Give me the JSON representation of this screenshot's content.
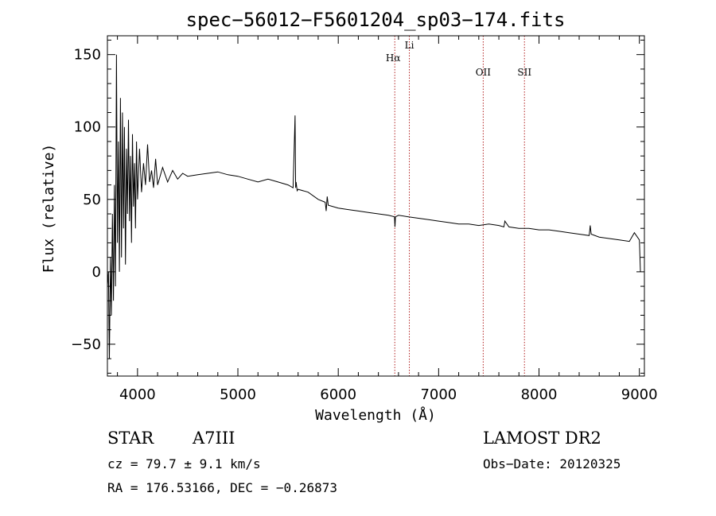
{
  "chart_data": {
    "type": "line",
    "title": "spec−56012−F5601204_sp03−174.fits",
    "xlabel": "Wavelength (Å)",
    "ylabel": "Flux (relative)",
    "xlim": [
      3700,
      9050
    ],
    "ylim": [
      -72,
      163
    ],
    "xticks": [
      4000,
      5000,
      6000,
      7000,
      8000,
      9000
    ],
    "xtick_labels": [
      "4000",
      "5000",
      "6000",
      "7000",
      "8000",
      "9000"
    ],
    "yticks": [
      -50,
      0,
      50,
      100,
      150
    ],
    "ytick_labels": [
      "−50",
      "0",
      "50",
      "100",
      "150"
    ],
    "grid": false,
    "series": [
      {
        "x": [
          3700,
          3710,
          3720,
          3730,
          3740,
          3750,
          3760,
          3770,
          3780,
          3790,
          3800,
          3810,
          3820,
          3830,
          3840,
          3850,
          3860,
          3870,
          3880,
          3890,
          3900,
          3910,
          3920,
          3930,
          3940,
          3950,
          3960,
          3970,
          3980,
          3990,
          4000,
          4020,
          4040,
          4060,
          4080,
          4100,
          4120,
          4140,
          4160,
          4180,
          4200,
          4250,
          4300,
          4350,
          4400,
          4450,
          4500,
          4600,
          4700,
          4800,
          4900,
          5000,
          5100,
          5200,
          5300,
          5400,
          5500,
          5550,
          5570,
          5575,
          5580,
          5590,
          5600,
          5700,
          5800,
          5870,
          5880,
          5890,
          5900,
          6000,
          6100,
          6200,
          6300,
          6400,
          6500,
          6560,
          6565,
          6570,
          6600,
          6700,
          6800,
          6900,
          7000,
          7100,
          7200,
          7300,
          7400,
          7500,
          7600,
          7650,
          7660,
          7700,
          7800,
          7900,
          8000,
          8100,
          8200,
          8300,
          8400,
          8500,
          8510,
          8520,
          8600,
          8700,
          8800,
          8900,
          8950,
          9000,
          9010
        ],
        "y": [
          -10,
          0,
          -60,
          10,
          -30,
          40,
          -20,
          60,
          -10,
          150,
          20,
          90,
          0,
          120,
          10,
          110,
          30,
          100,
          5,
          85,
          40,
          105,
          35,
          80,
          20,
          95,
          45,
          75,
          30,
          90,
          50,
          85,
          55,
          75,
          60,
          88,
          62,
          70,
          58,
          78,
          60,
          72,
          62,
          70,
          64,
          68,
          66,
          67,
          68,
          69,
          67,
          66,
          64,
          62,
          64,
          62,
          60,
          58,
          108,
          58,
          62,
          56,
          57,
          55,
          50,
          48,
          42,
          52,
          46,
          44,
          43,
          42,
          41,
          40,
          39,
          38,
          31,
          38,
          39,
          38,
          37,
          36,
          35,
          34,
          33,
          33,
          32,
          33,
          32,
          31,
          35,
          31,
          30,
          30,
          29,
          29,
          28,
          27,
          26,
          25,
          32,
          26,
          24,
          23,
          22,
          21,
          27,
          22,
          0
        ]
      }
    ],
    "vlines": [
      {
        "x": 6563,
        "label": "Hα"
      },
      {
        "x": 6708,
        "label": "Li"
      },
      {
        "x": 7444,
        "label": "OII"
      },
      {
        "x": 7855,
        "label": "SII"
      }
    ],
    "annotations": {
      "class_label": "STAR",
      "subclass": "A7III",
      "velocity": "cz = 79.7 ± 9.1 km/s",
      "coords": "RA = 176.53166, DEC =  −0.26873",
      "survey": "LAMOST DR2",
      "obs_date": "Obs−Date: 20120325"
    }
  }
}
